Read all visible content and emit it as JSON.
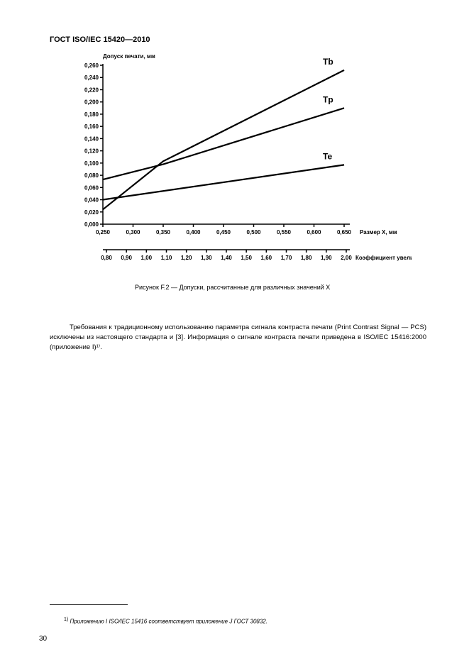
{
  "doc_header": "ГОСТ  ISO/IEC 15420—2010",
  "chart": {
    "type": "line",
    "y_axis_title": "Допуск печати, мм",
    "y_ticks": [
      "0,260",
      "0,240",
      "0,220",
      "0,200",
      "0,180",
      "0,160",
      "0,140",
      "0,120",
      "0,100",
      "0,080",
      "0,060",
      "0,040",
      "0,020",
      "0,000"
    ],
    "y_min": 0.0,
    "y_max": 0.26,
    "x_row1_values": [
      "0,250",
      "0,300",
      "0,350",
      "0,400",
      "0,450",
      "0,500",
      "0,550",
      "0,600",
      "0,650"
    ],
    "x_row1_title": "Размер Х, мм",
    "x_row2_values": [
      "0,80",
      "0,90",
      "1,00",
      "1,10",
      "1,20",
      "1,30",
      "1,40",
      "1,50",
      "1,60",
      "1,70",
      "1,80",
      "1,90",
      "2,00"
    ],
    "x_row2_title": "Коэффициент увеличения",
    "x_min": 0.25,
    "x_max": 0.65,
    "series": [
      {
        "name": "Tb",
        "label": "Tb",
        "points": [
          [
            0.25,
            0.024
          ],
          [
            0.35,
            0.103
          ],
          [
            0.65,
            0.252
          ]
        ]
      },
      {
        "name": "Tp",
        "label": "Tp",
        "points": [
          [
            0.25,
            0.073
          ],
          [
            0.35,
            0.098
          ],
          [
            0.65,
            0.19
          ]
        ]
      },
      {
        "name": "Te",
        "label": "Te",
        "points": [
          [
            0.25,
            0.04
          ],
          [
            0.65,
            0.097
          ]
        ]
      }
    ],
    "line_color": "#000000",
    "background_color": "#ffffff",
    "axis_color": "#000000"
  },
  "figure_caption": "Рисунок F.2 — Допуски, рассчитанные для различных значений X",
  "body_text": "Требования к традиционному использованию параметра сигнала контраста печати (Print Contrast Signal — PCS) исключены из настоящего стандарта и [3]. Информация о сигнале контраста печати приведена в ISO/IEC 15416:2000 (приложение I)¹⁾.",
  "footnote_marker": "1)",
  "footnote_text": "Приложению I ISO/IEC 15416 соответствует приложение J ГОСТ 30832.",
  "page_number": "30"
}
